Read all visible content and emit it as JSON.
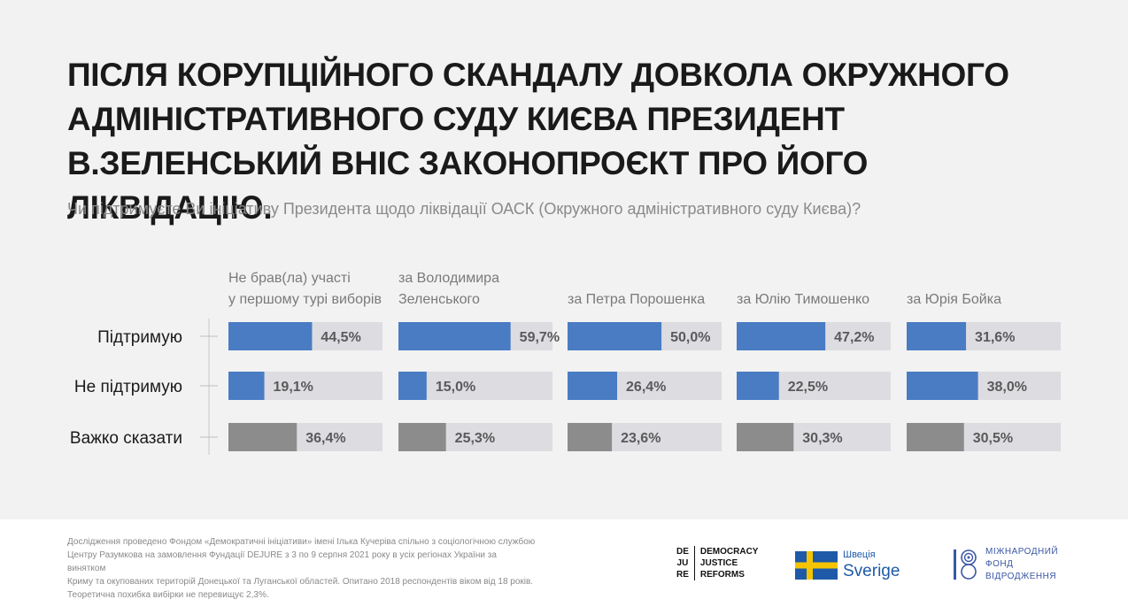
{
  "title": "ПІСЛЯ КОРУПЦІЙНОГО СКАНДАЛУ ДОВКОЛА ОКРУЖНОГО АДМІНІСТРАТИВНОГО СУДУ КИЄВА ПРЕЗИДЕНТ В.ЗЕЛЕНСЬКИЙ ВНІС ЗАКОНОПРОЄКТ ПРО ЙОГО ЛІКВІДАЦІЮ.",
  "subtitle": "Чи підтримуєте Ви ініціативу Президента щодо ліквідації ОАСК (Окружного адміністративного суду Києва)?",
  "colors": {
    "support": "#4a7cc4",
    "oppose": "#4a7cc4",
    "unsure": "#8c8c8c",
    "track": "#dcdce1",
    "value_text": "#5a5a5a"
  },
  "chart_data": {
    "type": "bar",
    "orientation": "horizontal",
    "panels": [
      {
        "label_lines": [
          "Не брав(ла) участі",
          "у першому турі виборів"
        ]
      },
      {
        "label_lines": [
          "за Володимира",
          "Зеленського"
        ]
      },
      {
        "label_lines": [
          "за Петра Порошенка"
        ]
      },
      {
        "label_lines": [
          "за Юлію Тимошенко"
        ]
      },
      {
        "label_lines": [
          "за Юрія Бойка"
        ]
      }
    ],
    "categories": [
      "Підтримую",
      "Не підтримую",
      "Важко сказати"
    ],
    "series": [
      {
        "values": [
          44.5,
          19.1,
          36.4
        ],
        "labels": [
          "44,5%",
          "19,1%",
          "36,4%"
        ]
      },
      {
        "values": [
          59.7,
          15.0,
          25.3
        ],
        "labels": [
          "59,7%",
          "15,0%",
          "25,3%"
        ]
      },
      {
        "values": [
          50.0,
          26.4,
          23.6
        ],
        "labels": [
          "50,0%",
          "26,4%",
          "23,6%"
        ]
      },
      {
        "values": [
          47.2,
          22.5,
          30.3
        ],
        "labels": [
          "47,2%",
          "22,5%",
          "30,3%"
        ]
      },
      {
        "values": [
          31.6,
          38.0,
          30.5
        ],
        "labels": [
          "31,6%",
          "38,0%",
          "30,5%"
        ]
      }
    ],
    "xlim": [
      0,
      82
    ]
  },
  "footer": {
    "lines": [
      "Дослідження проведено Фондом «Демократичні ініціативи» імені Ілька Кучеріва спільно з соціологічною службою",
      "Центру Разумкова на замовлення Фундації DEJURE з 3 по 9 серпня 2021 року в усіх регіонах України за винятком",
      "Криму та окупованих територій Донецької та Луганської областей. Опитано 2018  респондентів віком від 18 років.",
      "Теоретична похибка вибірки не перевищує 2,3%."
    ]
  },
  "logos": {
    "dejure": {
      "left": [
        "DE",
        "JU",
        "RE"
      ],
      "right": [
        "DEMOCRACY",
        "JUSTICE",
        "REFORMS"
      ]
    },
    "sweden": {
      "line1": "Швеція",
      "line2": "Sverige",
      "flag_blue": "#1e5aa8",
      "flag_yellow": "#f5c400"
    },
    "irf": {
      "lines": [
        "МІЖНАРОДНИЙ",
        "ФОНД",
        "ВІДРОДЖЕННЯ"
      ],
      "color": "#3a56a5"
    }
  }
}
